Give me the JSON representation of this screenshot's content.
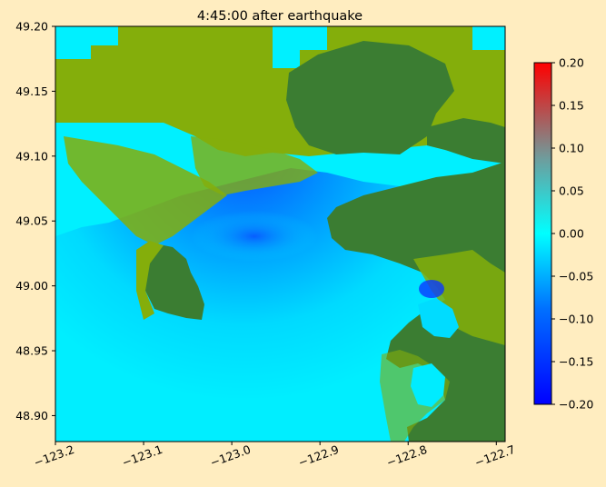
{
  "chart_data": [
    {
      "type": "heatmap",
      "title": "4:45:00 after earthquake",
      "xlabel": "",
      "ylabel": "",
      "xlim": [
        -123.2,
        -122.69
      ],
      "ylim": [
        48.88,
        49.2
      ],
      "x_ticks": [
        -123.2,
        -123.1,
        -123.0,
        -122.9,
        -122.8,
        -122.7
      ],
      "x_tick_labels": [
        "−123.2",
        "−123.1",
        "−123.0",
        "−122.9",
        "−122.8",
        "−122.7"
      ],
      "y_ticks": [
        48.9,
        48.95,
        49.0,
        49.05,
        49.1,
        49.15,
        49.2
      ],
      "y_tick_labels": [
        "48.90",
        "48.95",
        "49.00",
        "49.05",
        "49.10",
        "49.15",
        "49.20"
      ],
      "grid": false,
      "description_colors": {
        "land_dark": "#3b7d32",
        "land_light": "#84ae0b",
        "water_zero": "#00f0ff",
        "deep_negative": "#0a40ff"
      }
    },
    {
      "type": "colorbar",
      "range": [
        -0.2,
        0.2
      ],
      "ticks": [
        -0.2,
        -0.15,
        -0.1,
        -0.05,
        0.0,
        0.05,
        0.1,
        0.15,
        0.2
      ],
      "tick_labels": [
        "−0.20",
        "−0.15",
        "−0.10",
        "−0.05",
        "0.00",
        "0.05",
        "0.10",
        "0.15",
        "0.20"
      ],
      "colors": [
        "#0000ff",
        "#00c8ff",
        "#00ffff",
        "#6f9c9c",
        "#ff0000"
      ]
    }
  ]
}
